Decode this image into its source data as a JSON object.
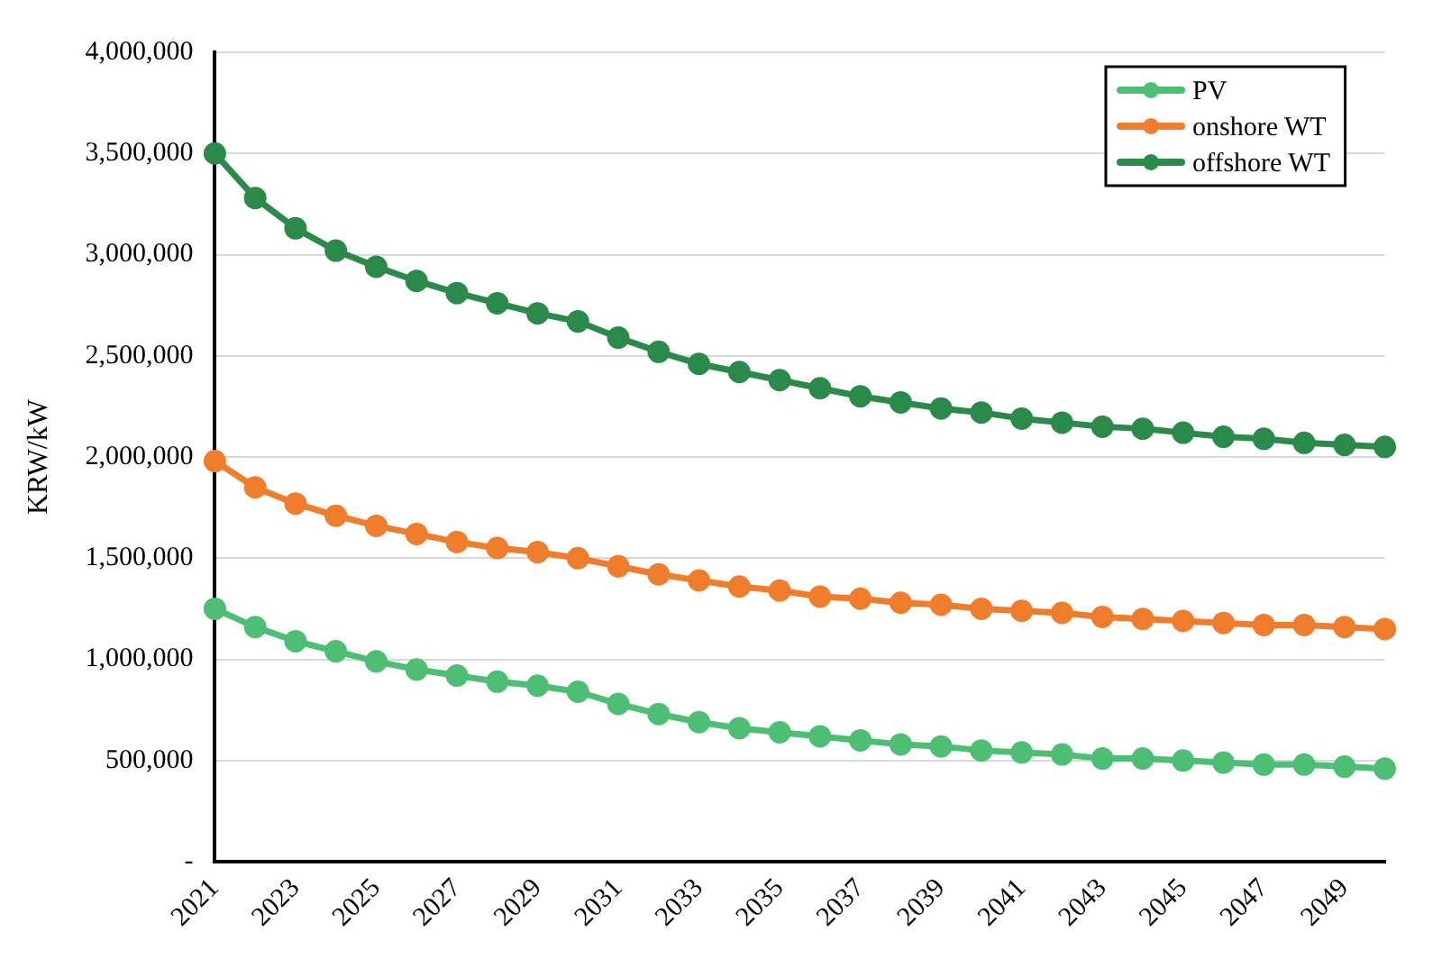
{
  "chart_data": {
    "type": "line",
    "ylabel": "KRW/kW",
    "categories": [
      "2021",
      null,
      "2023",
      null,
      "2025",
      null,
      "2027",
      null,
      "2029",
      null,
      "2031",
      null,
      "2033",
      null,
      "2035",
      null,
      "2037",
      null,
      "2039",
      null,
      "2041",
      null,
      "2043",
      null,
      "2045",
      null,
      "2047",
      null,
      "2049",
      null
    ],
    "series": [
      {
        "name": "PV",
        "color": "#4dbf74",
        "values": [
          1250000,
          1160000,
          1090000,
          1040000,
          990000,
          950000,
          920000,
          890000,
          870000,
          840000,
          780000,
          730000,
          690000,
          660000,
          640000,
          620000,
          600000,
          580000,
          570000,
          550000,
          540000,
          530000,
          510000,
          510000,
          500000,
          490000,
          480000,
          480000,
          470000,
          460000
        ]
      },
      {
        "name": "onshore WT",
        "color": "#f07d2c",
        "values": [
          1980000,
          1850000,
          1770000,
          1710000,
          1660000,
          1620000,
          1580000,
          1550000,
          1530000,
          1500000,
          1460000,
          1420000,
          1390000,
          1360000,
          1340000,
          1310000,
          1300000,
          1280000,
          1270000,
          1250000,
          1240000,
          1230000,
          1210000,
          1200000,
          1190000,
          1180000,
          1170000,
          1170000,
          1160000,
          1150000
        ]
      },
      {
        "name": "offshore WT",
        "color": "#2a8a4a",
        "values": [
          3500000,
          3280000,
          3130000,
          3020000,
          2940000,
          2870000,
          2810000,
          2760000,
          2710000,
          2670000,
          2590000,
          2520000,
          2460000,
          2420000,
          2380000,
          2340000,
          2300000,
          2270000,
          2240000,
          2220000,
          2190000,
          2170000,
          2150000,
          2140000,
          2120000,
          2100000,
          2090000,
          2070000,
          2060000,
          2050000
        ]
      }
    ],
    "ylim": [
      0,
      4000000
    ],
    "yticks": [
      {
        "value": 0,
        "label": "-"
      },
      {
        "value": 500000,
        "label": "500,000"
      },
      {
        "value": 1000000,
        "label": "1,000,000"
      },
      {
        "value": 1500000,
        "label": "1,500,000"
      },
      {
        "value": 2000000,
        "label": "2,000,000"
      },
      {
        "value": 2500000,
        "label": "2,500,000"
      },
      {
        "value": 3000000,
        "label": "3,000,000"
      },
      {
        "value": 3500000,
        "label": "3,500,000"
      },
      {
        "value": 4000000,
        "label": "4,000,000"
      }
    ],
    "grid": "y",
    "legend": "top right",
    "marker": "circle",
    "line_style": "solid"
  }
}
